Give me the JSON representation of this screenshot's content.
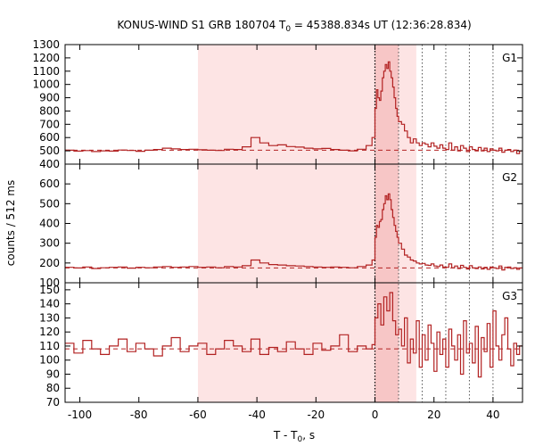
{
  "chart_data": {
    "type": "line",
    "title_prefix": "KONUS-WIND S1 GRB 180704 T",
    "title_sub": "0",
    "title_suffix": " = 45388.834s UT (12:36:28.834)",
    "xlabel_prefix": "T - T",
    "xlabel_sub": "0",
    "xlabel_suffix": ", s",
    "ylabel": "counts / 512 ms",
    "xlim": [
      -105,
      50
    ],
    "xticks": [
      -100,
      -80,
      -60,
      -40,
      -20,
      0,
      20,
      40
    ],
    "shaded_region": [
      -60,
      14
    ],
    "dark_shaded_region": [
      0,
      8
    ],
    "vline_dotted_t0": 0,
    "vlines_dotted": [
      8,
      16,
      24,
      32,
      40
    ],
    "colors": {
      "line": "#b22222",
      "shade_light": "#fde4e4",
      "shade_dark": "#f7c6c6",
      "vline": "#555555"
    },
    "panels": [
      {
        "name": "G1",
        "ylim": [
          400,
          1300
        ],
        "yticks": [
          400,
          500,
          600,
          700,
          800,
          900,
          1000,
          1100,
          1200,
          1300
        ],
        "background": 505,
        "x": [
          -105,
          -102,
          -99,
          -96,
          -93,
          -90,
          -87,
          -84,
          -81,
          -78,
          -75,
          -72,
          -69,
          -66,
          -63,
          -60,
          -57,
          -54,
          -51,
          -48,
          -45,
          -42,
          -39,
          -36,
          -33,
          -30,
          -27,
          -24,
          -21,
          -18,
          -15,
          -12,
          -9,
          -6,
          -3,
          -1,
          0,
          0.5,
          1,
          1.5,
          2,
          2.5,
          3,
          3.5,
          4,
          4.5,
          5,
          5.5,
          6,
          6.5,
          7,
          7.5,
          8,
          9,
          10,
          11,
          12,
          13,
          14,
          15,
          16,
          17,
          18,
          19,
          20,
          21,
          22,
          23,
          24,
          25,
          26,
          27,
          28,
          29,
          30,
          31,
          32,
          33,
          34,
          35,
          36,
          37,
          38,
          39,
          40,
          41,
          42,
          43,
          44,
          45,
          46,
          47,
          48,
          49
        ],
        "y": [
          505,
          498,
          502,
          495,
          500,
          498,
          506,
          503,
          497,
          505,
          510,
          520,
          515,
          510,
          512,
          508,
          505,
          503,
          512,
          510,
          530,
          600,
          560,
          540,
          545,
          532,
          528,
          520,
          515,
          518,
          510,
          505,
          500,
          512,
          540,
          600,
          820,
          960,
          900,
          880,
          950,
          1050,
          1100,
          1150,
          1120,
          1170,
          1100,
          1050,
          980,
          900,
          820,
          760,
          720,
          700,
          650,
          600,
          560,
          590,
          560,
          540,
          560,
          550,
          530,
          560,
          535,
          520,
          545,
          520,
          510,
          560,
          505,
          530,
          500,
          540,
          520,
          495,
          530,
          510,
          500,
          525,
          500,
          520,
          495,
          515,
          505,
          500,
          520,
          490,
          505,
          510,
          495,
          505,
          480,
          500
        ]
      },
      {
        "name": "G2",
        "ylim": [
          100,
          700
        ],
        "yticks": [
          100,
          200,
          300,
          400,
          500,
          600
        ],
        "background": 175,
        "x": [
          -105,
          -102,
          -99,
          -96,
          -93,
          -90,
          -87,
          -84,
          -81,
          -78,
          -75,
          -72,
          -69,
          -66,
          -63,
          -60,
          -57,
          -54,
          -51,
          -48,
          -45,
          -42,
          -39,
          -36,
          -33,
          -30,
          -27,
          -24,
          -21,
          -18,
          -15,
          -12,
          -9,
          -6,
          -3,
          -1,
          0,
          0.5,
          1,
          1.5,
          2,
          2.5,
          3,
          3.5,
          4,
          4.5,
          5,
          5.5,
          6,
          6.5,
          7,
          7.5,
          8,
          9,
          10,
          11,
          12,
          13,
          14,
          15,
          16,
          17,
          18,
          19,
          20,
          21,
          22,
          23,
          24,
          25,
          26,
          27,
          28,
          29,
          30,
          31,
          32,
          33,
          34,
          35,
          36,
          37,
          38,
          39,
          40,
          41,
          42,
          43,
          44,
          45,
          46,
          47,
          48,
          49
        ],
        "y": [
          178,
          175,
          180,
          172,
          176,
          178,
          180,
          174,
          178,
          176,
          180,
          182,
          178,
          180,
          182,
          178,
          180,
          176,
          182,
          180,
          186,
          215,
          200,
          192,
          190,
          186,
          185,
          182,
          180,
          178,
          180,
          178,
          176,
          182,
          190,
          215,
          330,
          390,
          380,
          410,
          420,
          470,
          500,
          540,
          520,
          550,
          520,
          470,
          430,
          390,
          360,
          330,
          300,
          270,
          240,
          230,
          215,
          210,
          200,
          195,
          198,
          190,
          188,
          195,
          185,
          182,
          190,
          180,
          178,
          195,
          176,
          185,
          172,
          188,
          178,
          170,
          186,
          175,
          172,
          180,
          170,
          178,
          168,
          180,
          176,
          172,
          185,
          165,
          178,
          180,
          172,
          176,
          168,
          175
        ]
      },
      {
        "name": "G3",
        "ylim": [
          70,
          155
        ],
        "yticks": [
          70,
          80,
          90,
          100,
          110,
          120,
          130,
          140,
          150
        ],
        "background": 108,
        "x": [
          -105,
          -102,
          -99,
          -96,
          -93,
          -90,
          -87,
          -84,
          -81,
          -78,
          -75,
          -72,
          -69,
          -66,
          -63,
          -60,
          -57,
          -54,
          -51,
          -48,
          -45,
          -42,
          -39,
          -36,
          -33,
          -30,
          -27,
          -24,
          -21,
          -18,
          -15,
          -12,
          -9,
          -6,
          -3,
          -1,
          0,
          1,
          2,
          3,
          4,
          5,
          6,
          7,
          8,
          9,
          10,
          11,
          12,
          13,
          14,
          15,
          16,
          17,
          18,
          19,
          20,
          21,
          22,
          23,
          24,
          25,
          26,
          27,
          28,
          29,
          30,
          31,
          32,
          33,
          34,
          35,
          36,
          37,
          38,
          39,
          40,
          41,
          42,
          43,
          44,
          45,
          46,
          47,
          48,
          49
        ],
        "y": [
          112,
          105,
          114,
          108,
          104,
          110,
          115,
          106,
          112,
          108,
          103,
          110,
          116,
          106,
          110,
          112,
          104,
          108,
          114,
          110,
          106,
          115,
          104,
          109,
          106,
          113,
          108,
          104,
          112,
          107,
          110,
          118,
          106,
          110,
          108,
          111,
          130,
          140,
          125,
          145,
          135,
          148,
          128,
          118,
          122,
          110,
          130,
          98,
          115,
          105,
          128,
          95,
          118,
          100,
          125,
          112,
          92,
          120,
          104,
          115,
          95,
          122,
          110,
          100,
          118,
          90,
          128,
          105,
          112,
          98,
          124,
          88,
          116,
          106,
          126,
          95,
          135,
          110,
          100,
          118,
          130,
          108,
          96,
          112,
          104,
          110
        ]
      }
    ]
  }
}
